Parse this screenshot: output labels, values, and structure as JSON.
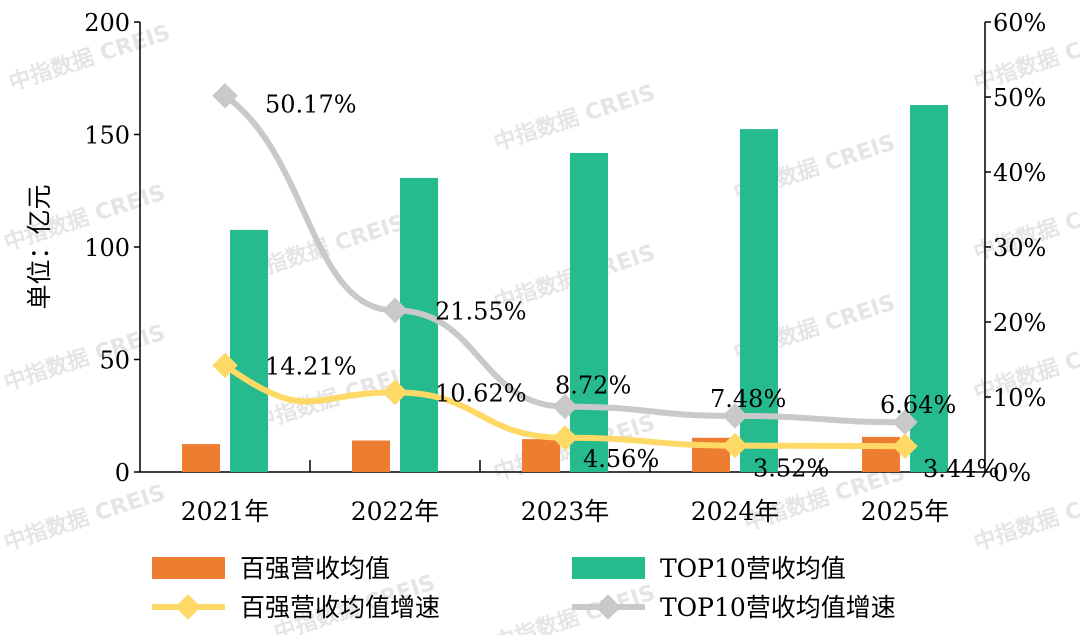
{
  "watermark": "中指数据 CREIS",
  "chart_data": {
    "type": "bar",
    "categories": [
      "2021年",
      "2022年",
      "2023年",
      "2024年",
      "2025年"
    ],
    "ylabel": "单位：亿元",
    "ylim": [
      0,
      200
    ],
    "yticks": [
      "0",
      "50",
      "100",
      "150",
      "200"
    ],
    "y2lim": [
      0,
      60
    ],
    "y2ticks": [
      "0%",
      "10%",
      "20%",
      "30%",
      "40%",
      "50%",
      "60%"
    ],
    "grid": false,
    "legend_placement": "bottom",
    "series": [
      {
        "name": "百强营收均值",
        "type": "bar",
        "axis": "left",
        "color": "#ED7D31",
        "values": [
          12.4,
          14.0,
          14.6,
          15.2,
          15.6
        ]
      },
      {
        "name": "TOP10营收均值",
        "type": "bar",
        "axis": "left",
        "color": "#26BB8F",
        "values": [
          107.6,
          130.7,
          141.8,
          152.4,
          163.1
        ]
      },
      {
        "name": "百强营收均值增速",
        "type": "line",
        "axis": "right",
        "color": "#FFD966",
        "values": [
          14.21,
          10.62,
          4.56,
          3.52,
          3.44
        ],
        "labels": [
          "14.21%",
          "10.62%",
          "4.56%",
          "3.52%",
          "3.44%"
        ]
      },
      {
        "name": "TOP10营收均值增速",
        "type": "line",
        "axis": "right",
        "color": "#C9C9C9",
        "values": [
          50.17,
          21.55,
          8.72,
          7.48,
          6.64
        ],
        "labels": [
          "50.17%",
          "21.55%",
          "8.72%",
          "7.48%",
          "6.64%"
        ]
      }
    ]
  }
}
